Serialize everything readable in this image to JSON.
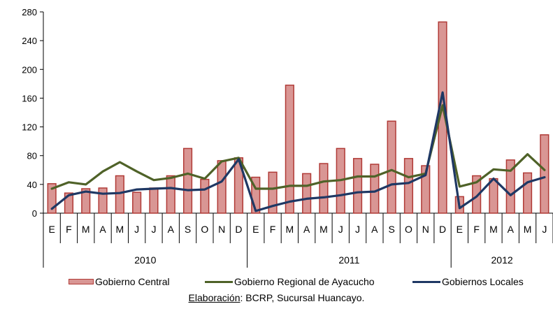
{
  "chart_data": {
    "type": "bar",
    "y_ticks": [
      "0",
      "40",
      "80",
      "120",
      "160",
      "200",
      "240",
      "280"
    ],
    "ylim": [
      0,
      280
    ],
    "grid": false,
    "categories": [
      "E",
      "F",
      "M",
      "A",
      "M",
      "J",
      "J",
      "A",
      "S",
      "O",
      "N",
      "D",
      "E",
      "F",
      "M",
      "A",
      "M",
      "J",
      "J",
      "A",
      "S",
      "O",
      "N",
      "D",
      "E",
      "F",
      "M",
      "A",
      "M",
      "J"
    ],
    "years": [
      {
        "label": "2010",
        "start": 0,
        "end": 12
      },
      {
        "label": "2011",
        "start": 12,
        "end": 24
      },
      {
        "label": "2012",
        "start": 24,
        "end": 30
      }
    ],
    "series": [
      {
        "name": "Gobierno Central",
        "kind": "bar",
        "color": "#d99694",
        "edge": "#b03a36",
        "values": [
          41,
          28,
          34,
          35,
          52,
          29,
          35,
          52,
          90,
          47,
          73,
          77,
          50,
          57,
          178,
          55,
          69,
          90,
          76,
          68,
          128,
          76,
          66,
          266,
          23,
          52,
          48,
          74,
          56,
          109
        ]
      },
      {
        "name": "Gobierno Regional de Ayacucho",
        "kind": "line",
        "color": "#4f6228",
        "values": [
          34,
          43,
          40,
          58,
          71,
          58,
          46,
          49,
          55,
          48,
          72,
          77,
          34,
          34,
          38,
          38,
          44,
          46,
          51,
          51,
          60,
          50,
          55,
          150,
          37,
          43,
          61,
          59,
          82,
          60
        ]
      },
      {
        "name": "Gobiernos Locales",
        "kind": "line",
        "color": "#1f3864",
        "values": [
          6,
          25,
          30,
          27,
          28,
          33,
          34,
          35,
          32,
          33,
          44,
          75,
          3,
          10,
          16,
          20,
          22,
          25,
          29,
          30,
          40,
          42,
          53,
          168,
          7,
          23,
          48,
          25,
          43,
          50
        ]
      }
    ]
  },
  "footer": {
    "label": "Elaboración",
    "text": ": BCRP, Sucursal Huancayo."
  }
}
